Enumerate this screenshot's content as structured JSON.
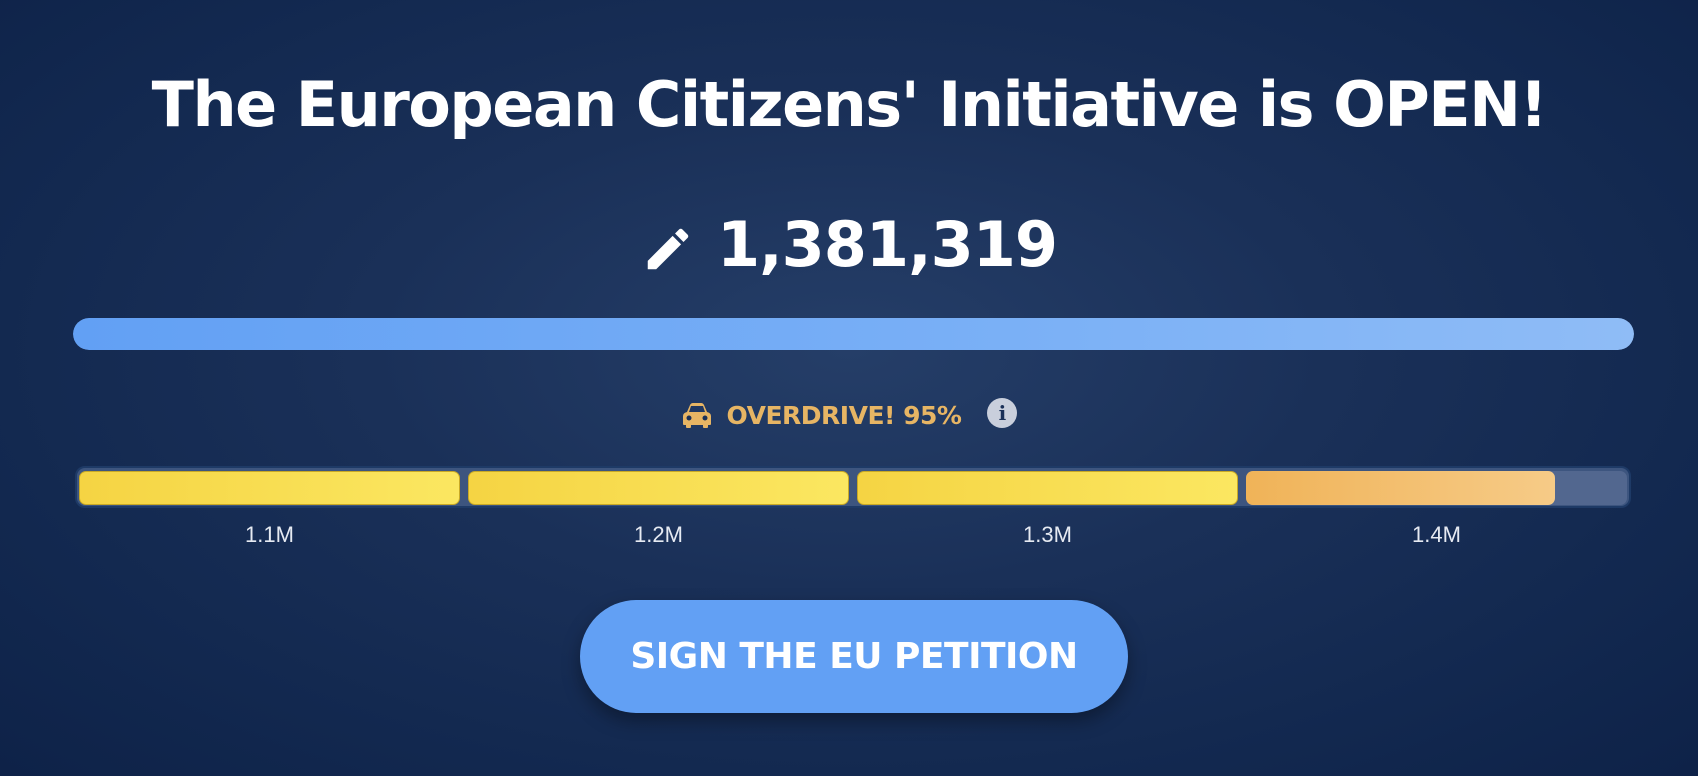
{
  "header": {
    "title": "The European Citizens' Initiative is OPEN!"
  },
  "counter": {
    "icon": "pencil-icon",
    "value": "1,381,319"
  },
  "progress": {
    "fraction": 1.0,
    "color": "#62a0f4"
  },
  "overdrive": {
    "icon": "car-icon",
    "label": "OVERDRIVE! 95%",
    "percent": 95,
    "info_icon": "info-icon",
    "color": "#e7b564"
  },
  "milestones": [
    {
      "label": "1.1M",
      "fill": 1.0
    },
    {
      "label": "1.2M",
      "fill": 1.0
    },
    {
      "label": "1.3M",
      "fill": 1.0
    },
    {
      "label": "1.4M",
      "fill": 0.81
    }
  ],
  "cta": {
    "label": "SIGN THE EU PETITION",
    "color": "#62a0f4"
  }
}
